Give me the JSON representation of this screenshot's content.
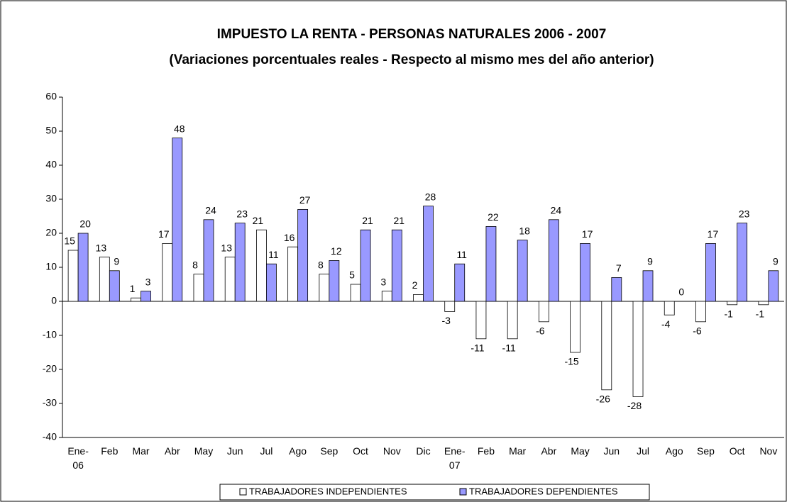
{
  "chart_data": {
    "type": "bar",
    "title": "IMPUESTO LA RENTA - PERSONAS NATURALES  2006 - 2007",
    "subtitle": "(Variaciones porcentuales reales - Respecto al mismo mes del año anterior)",
    "categories": [
      "Ene- 06",
      "Feb",
      "Mar",
      "Abr",
      "May",
      "Jun",
      "Jul",
      "Ago",
      "Sep",
      "Oct",
      "Nov",
      "Dic",
      "Ene- 07",
      "Feb",
      "Mar",
      "Abr",
      "May",
      "Jun",
      "Jul",
      "Ago",
      "Sep",
      "Oct",
      "Nov"
    ],
    "series": [
      {
        "name": "TRABAJADORES INDEPENDIENTES",
        "color": "#ffffff",
        "values": [
          15,
          13,
          1,
          17,
          8,
          13,
          21,
          16,
          8,
          5,
          3,
          2,
          -3,
          -11,
          -11,
          -6,
          -15,
          -26,
          -28,
          -4,
          -6,
          -1,
          -1
        ]
      },
      {
        "name": "TRABAJADORES DEPENDIENTES",
        "color": "#9999ff",
        "values": [
          20,
          9,
          3,
          48,
          24,
          23,
          11,
          27,
          12,
          21,
          21,
          28,
          11,
          22,
          18,
          24,
          17,
          7,
          9,
          0,
          17,
          23,
          9
        ]
      }
    ],
    "ylim": [
      -40,
      60
    ],
    "yticks": [
      -40,
      -30,
      -20,
      -10,
      0,
      10,
      20,
      30,
      40,
      50,
      60
    ],
    "legend": "bottom"
  }
}
